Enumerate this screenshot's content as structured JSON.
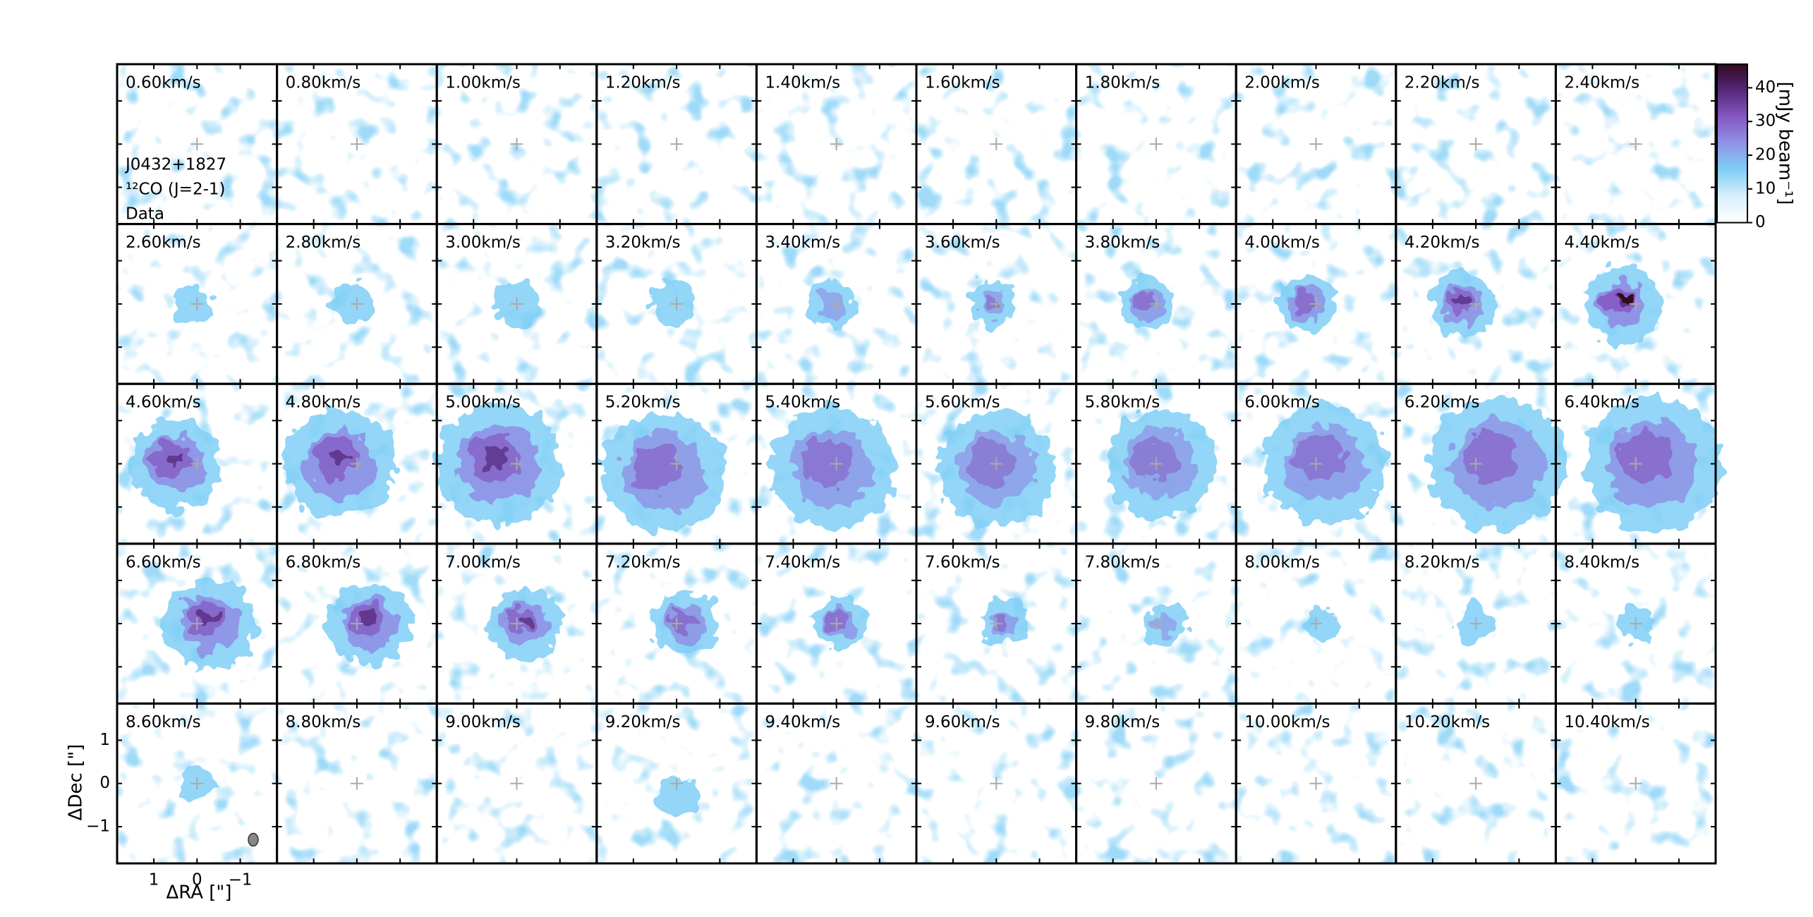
{
  "chart_data": {
    "type": "channel_map",
    "panels": [
      "0.60km/s",
      "0.80km/s",
      "1.00km/s",
      "1.20km/s",
      "1.40km/s",
      "1.60km/s",
      "1.80km/s",
      "2.00km/s",
      "2.20km/s",
      "2.40km/s",
      "2.60km/s",
      "2.80km/s",
      "3.00km/s",
      "3.20km/s",
      "3.40km/s",
      "3.60km/s",
      "3.80km/s",
      "4.00km/s",
      "4.20km/s",
      "4.40km/s",
      "4.60km/s",
      "4.80km/s",
      "5.00km/s",
      "5.20km/s",
      "5.40km/s",
      "5.60km/s",
      "5.80km/s",
      "6.00km/s",
      "6.20km/s",
      "6.40km/s",
      "6.60km/s",
      "6.80km/s",
      "7.00km/s",
      "7.20km/s",
      "7.40km/s",
      "7.60km/s",
      "7.80km/s",
      "8.00km/s",
      "8.20km/s",
      "8.40km/s",
      "8.60km/s",
      "8.80km/s",
      "9.00km/s",
      "9.20km/s",
      "9.40km/s",
      "9.60km/s",
      "9.80km/s",
      "10.00km/s",
      "10.20km/s",
      "10.40km/s"
    ],
    "annotations": [
      "J0432+1827",
      "¹²CO (J=2-1)",
      "Data"
    ],
    "xlabel": "ΔRA [\"]",
    "ylabel": "ΔDec [\"]",
    "xlim": [
      1.85,
      -1.85
    ],
    "ylim": [
      -1.85,
      1.85
    ],
    "xticks": [
      1,
      0,
      {
        "value": -1,
        "label": "−1"
      }
    ],
    "yticks": [
      1,
      0,
      {
        "value": -1,
        "label": "−1"
      }
    ],
    "colorbar": {
      "label": "[mJy beam⁻¹]",
      "lim": [
        0,
        47
      ],
      "ticks": [
        0,
        10,
        20,
        30,
        40
      ],
      "colors": [
        "#ffffff",
        "#d8effc",
        "#80cff6",
        "#8f93e6",
        "#8558c2",
        "#56287a",
        "#33081f"
      ]
    }
  }
}
